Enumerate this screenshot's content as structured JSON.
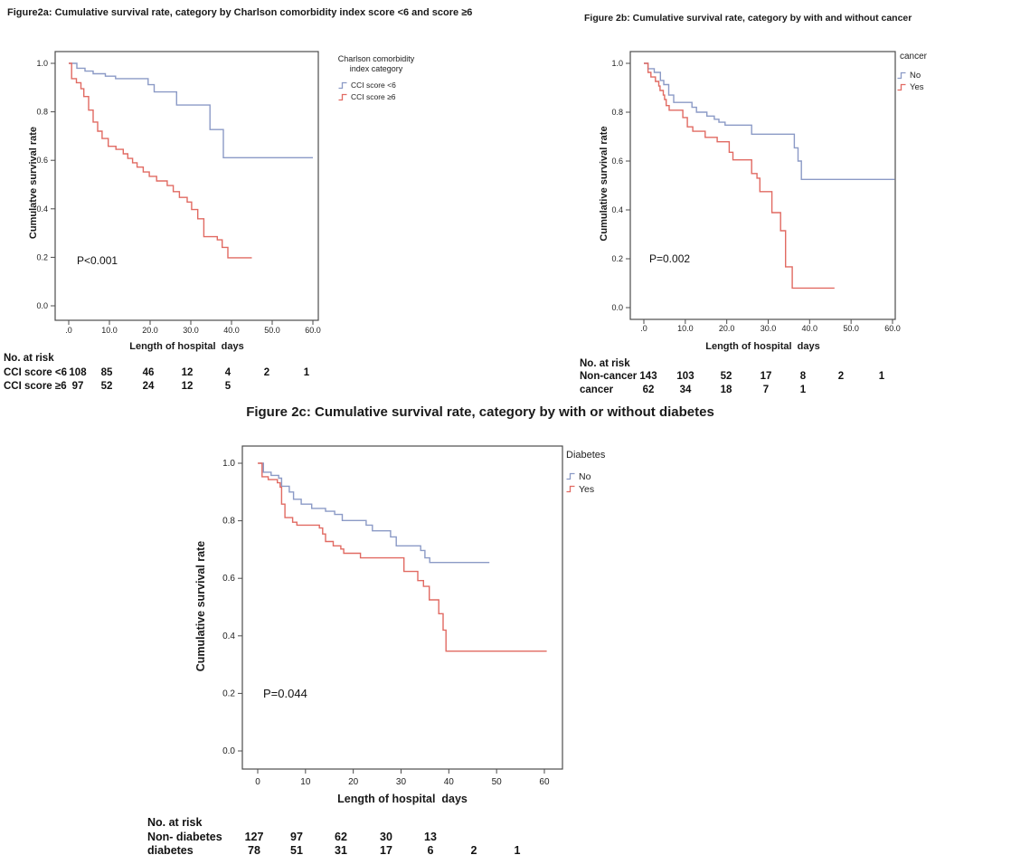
{
  "chart_data": [
    {
      "id": "figure-2a",
      "type": "line",
      "step": true,
      "title": "Figure2a: Cumulative survival rate, category by Charlson comorbidity index score <6 and score ≥6",
      "xlabel": "Length of hospital  days",
      "ylabel": "Cumulatve survival rate",
      "p_label": "P<0.001",
      "legend_title": "Charlson comorbidity\nindex category",
      "legend_position": "right-top-outside",
      "grid": false,
      "xlim": [
        0,
        63
      ],
      "ylim": [
        0,
        1.05
      ],
      "x_ticks": [
        ".0",
        "10.0",
        "20.0",
        "30.0",
        "40.0",
        "50.0",
        "60.0"
      ],
      "x_tick_values": [
        0,
        10,
        20,
        30,
        40,
        50,
        60
      ],
      "y_ticks": [
        "1.0",
        "0.8",
        "0.6",
        "0.4",
        "0.2",
        "0.0"
      ],
      "y_tick_values": [
        1.0,
        0.8,
        0.6,
        0.4,
        0.2,
        0.0
      ],
      "series": [
        {
          "name": "CCI score <6",
          "color": "#8b9ac6",
          "end_x": 60,
          "points": [
            [
              0,
              1.0
            ],
            [
              2,
              0.98
            ],
            [
              4,
              0.968
            ],
            [
              6,
              0.957
            ],
            [
              9,
              0.947
            ],
            [
              11.5,
              0.937
            ],
            [
              19.5,
              0.912
            ],
            [
              21,
              0.882
            ],
            [
              26.5,
              0.828
            ],
            [
              34.7,
              0.727
            ],
            [
              38,
              0.611
            ]
          ]
        },
        {
          "name": "CCI score ≥6",
          "color": "#e16a62",
          "end_x": 45,
          "points": [
            [
              0,
              1.0
            ],
            [
              0.7,
              0.937
            ],
            [
              1.9,
              0.92
            ],
            [
              3,
              0.895
            ],
            [
              3.7,
              0.863
            ],
            [
              4.9,
              0.807
            ],
            [
              6,
              0.758
            ],
            [
              7.1,
              0.72
            ],
            [
              8.2,
              0.69
            ],
            [
              9.7,
              0.658
            ],
            [
              11.6,
              0.645
            ],
            [
              13.4,
              0.627
            ],
            [
              14.5,
              0.608
            ],
            [
              15.7,
              0.59
            ],
            [
              16.8,
              0.572
            ],
            [
              18.3,
              0.552
            ],
            [
              19.8,
              0.534
            ],
            [
              21.6,
              0.515
            ],
            [
              24.2,
              0.496
            ],
            [
              25.7,
              0.471
            ],
            [
              27.2,
              0.447
            ],
            [
              29.1,
              0.428
            ],
            [
              30.2,
              0.397
            ],
            [
              31.7,
              0.359
            ],
            [
              33.2,
              0.285
            ],
            [
              36.5,
              0.272
            ],
            [
              37.7,
              0.241
            ],
            [
              39.1,
              0.198
            ]
          ]
        }
      ],
      "at_risk": {
        "header": "No. at risk",
        "rows": [
          {
            "label": "CCI score <6",
            "values": [
              "108",
              "85",
              "46",
              "12",
              "4",
              "2",
              "1"
            ]
          },
          {
            "label": "CCI score ≥6",
            "values": [
              "97",
              "52",
              "24",
              "12",
              "5"
            ]
          }
        ]
      }
    },
    {
      "id": "figure-2b",
      "type": "line",
      "step": true,
      "title": "Figure 2b: Cumulative survival rate, category by with and without cancer",
      "xlabel": "Length of hospital  days",
      "ylabel": "Cumulative survival rate",
      "p_label": "P=0.002",
      "legend_title": "cancer",
      "legend_position": "right-top-outside",
      "grid": false,
      "xlim": [
        0,
        63
      ],
      "ylim": [
        0,
        1.05
      ],
      "x_ticks": [
        ".0",
        "10.0",
        "20.0",
        "30.0",
        "40.0",
        "50.0",
        "60.0"
      ],
      "x_tick_values": [
        0,
        10,
        20,
        30,
        40,
        50,
        60
      ],
      "y_ticks": [
        "1.0",
        "0.8",
        "0.6",
        "0.4",
        "0.2",
        "0.0"
      ],
      "y_tick_values": [
        1.0,
        0.8,
        0.6,
        0.4,
        0.2,
        0.0
      ],
      "series": [
        {
          "name": "No",
          "color": "#8b9ac6",
          "end_x": 60.5,
          "points": [
            [
              0,
              1.0
            ],
            [
              1,
              0.978
            ],
            [
              2.5,
              0.963
            ],
            [
              4,
              0.93
            ],
            [
              4.8,
              0.913
            ],
            [
              6,
              0.87
            ],
            [
              7.2,
              0.84
            ],
            [
              11.6,
              0.82
            ],
            [
              12.7,
              0.8
            ],
            [
              15.2,
              0.784
            ],
            [
              17,
              0.771
            ],
            [
              18.1,
              0.759
            ],
            [
              19.6,
              0.747
            ],
            [
              26,
              0.71
            ],
            [
              36.3,
              0.654
            ],
            [
              37.2,
              0.6
            ],
            [
              38,
              0.525
            ]
          ]
        },
        {
          "name": "Yes",
          "color": "#e16a62",
          "end_x": 46,
          "points": [
            [
              0,
              1.0
            ],
            [
              1,
              0.963
            ],
            [
              1.7,
              0.944
            ],
            [
              2.8,
              0.926
            ],
            [
              3.6,
              0.907
            ],
            [
              3.9,
              0.889
            ],
            [
              4.7,
              0.87
            ],
            [
              5,
              0.852
            ],
            [
              5.4,
              0.827
            ],
            [
              6.1,
              0.808
            ],
            [
              9.4,
              0.778
            ],
            [
              10.5,
              0.74
            ],
            [
              11.8,
              0.722
            ],
            [
              14.8,
              0.697
            ],
            [
              17.7,
              0.679
            ],
            [
              20.6,
              0.636
            ],
            [
              21.5,
              0.605
            ],
            [
              26,
              0.549
            ],
            [
              27.3,
              0.53
            ],
            [
              28,
              0.475
            ],
            [
              30.9,
              0.389
            ],
            [
              33,
              0.315
            ],
            [
              34.2,
              0.167
            ],
            [
              35.8,
              0.08
            ]
          ]
        }
      ],
      "at_risk": {
        "header": "No. at risk",
        "rows": [
          {
            "label": "Non-cancer",
            "values": [
              "143",
              "103",
              "52",
              "17",
              "8",
              "2",
              "1"
            ]
          },
          {
            "label": "cancer",
            "values": [
              "62",
              "34",
              "18",
              "7",
              "1"
            ]
          }
        ]
      }
    },
    {
      "id": "figure-2c",
      "type": "line",
      "step": true,
      "title": "Figure 2c: Cumulative survival rate, category by with or without diabetes",
      "xlabel": "Length of hospital  days",
      "ylabel": "Cumulative survival rate",
      "p_label": "P=0.044",
      "legend_title": "Diabetes",
      "legend_position": "right-top-outside",
      "grid": false,
      "xlim": [
        0,
        63
      ],
      "ylim": [
        0,
        1.05
      ],
      "x_ticks": [
        "0",
        "10",
        "20",
        "30",
        "40",
        "50",
        "60"
      ],
      "x_tick_values": [
        0,
        10,
        20,
        30,
        40,
        50,
        60
      ],
      "y_ticks": [
        "1.0",
        "0.8",
        "0.6",
        "0.4",
        "0.2",
        "0.0"
      ],
      "y_tick_values": [
        1.0,
        0.8,
        0.6,
        0.4,
        0.2,
        0.0
      ],
      "series": [
        {
          "name": "No",
          "color": "#8b9ac6",
          "end_x": 48.5,
          "points": [
            [
              0.3,
              1.0
            ],
            [
              1.2,
              0.969
            ],
            [
              2.8,
              0.958
            ],
            [
              4.4,
              0.948
            ],
            [
              5,
              0.92
            ],
            [
              6.6,
              0.9
            ],
            [
              7.5,
              0.875
            ],
            [
              9.1,
              0.858
            ],
            [
              11.3,
              0.843
            ],
            [
              14.2,
              0.833
            ],
            [
              16.1,
              0.822
            ],
            [
              17.7,
              0.801
            ],
            [
              22.7,
              0.785
            ],
            [
              24,
              0.765
            ],
            [
              27.8,
              0.744
            ],
            [
              29,
              0.713
            ],
            [
              34.1,
              0.697
            ],
            [
              35,
              0.671
            ],
            [
              36,
              0.655
            ]
          ]
        },
        {
          "name": "Yes",
          "color": "#e16a62",
          "end_x": 60.5,
          "points": [
            [
              0,
              1.0
            ],
            [
              0.9,
              0.953
            ],
            [
              2.2,
              0.943
            ],
            [
              4.1,
              0.932
            ],
            [
              4.7,
              0.917
            ],
            [
              5,
              0.858
            ],
            [
              5.7,
              0.811
            ],
            [
              7.3,
              0.795
            ],
            [
              8.2,
              0.785
            ],
            [
              12.9,
              0.775
            ],
            [
              13.6,
              0.754
            ],
            [
              14.2,
              0.728
            ],
            [
              15.8,
              0.713
            ],
            [
              17.4,
              0.702
            ],
            [
              18,
              0.687
            ],
            [
              21.5,
              0.671
            ],
            [
              30.6,
              0.624
            ],
            [
              33.5,
              0.592
            ],
            [
              34.7,
              0.572
            ],
            [
              35.9,
              0.525
            ],
            [
              37.9,
              0.477
            ],
            [
              38.8,
              0.42
            ],
            [
              39.4,
              0.347
            ]
          ]
        }
      ],
      "at_risk": {
        "header": "No. at risk",
        "rows": [
          {
            "label": "Non- diabetes",
            "values": [
              "127",
              "97",
              "62",
              "30",
              "13"
            ]
          },
          {
            "label": "diabetes",
            "values": [
              "78",
              "51",
              "31",
              "17",
              "6",
              "2",
              "1"
            ]
          }
        ]
      }
    }
  ]
}
